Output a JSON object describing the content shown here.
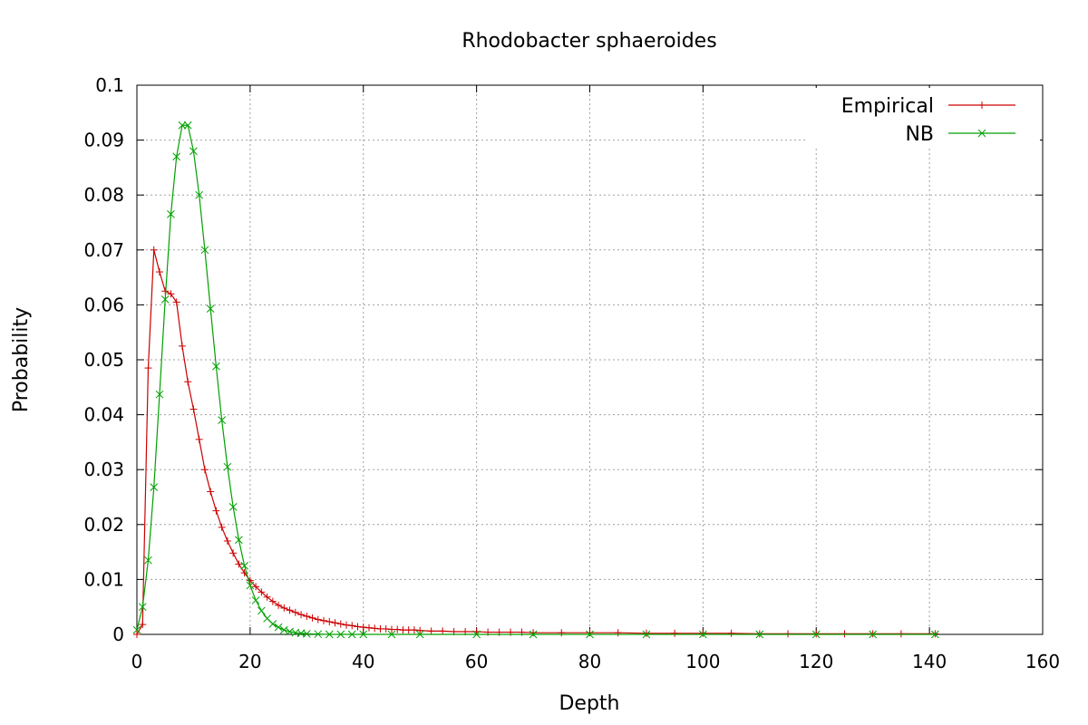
{
  "chart_data": {
    "type": "line",
    "title": "Rhodobacter sphaeroides",
    "xlabel": "Depth",
    "ylabel": "Probability",
    "xlim": [
      0,
      160
    ],
    "ylim": [
      0,
      0.1
    ],
    "x_ticks": [
      "0",
      "20",
      "40",
      "60",
      "80",
      "100",
      "120",
      "140",
      "160"
    ],
    "y_ticks": [
      "0",
      "0.01",
      "0.02",
      "0.03",
      "0.04",
      "0.05",
      "0.06",
      "0.07",
      "0.08",
      "0.09",
      "0.1"
    ],
    "grid": true,
    "legend_position": "top-right",
    "series": [
      {
        "name": "Empirical",
        "color": "#cc0000",
        "marker": "plus",
        "x": [
          0,
          1,
          2,
          3,
          4,
          5,
          6,
          7,
          8,
          9,
          10,
          11,
          12,
          13,
          14,
          15,
          16,
          17,
          18,
          19,
          20,
          21,
          22,
          23,
          24,
          25,
          26,
          27,
          28,
          29,
          30,
          31,
          32,
          33,
          34,
          35,
          36,
          37,
          38,
          39,
          40,
          41,
          42,
          43,
          44,
          45,
          46,
          47,
          48,
          49,
          50,
          52,
          54,
          56,
          58,
          60,
          62,
          64,
          66,
          68,
          70,
          75,
          80,
          85,
          90,
          95,
          100,
          105,
          110,
          115,
          120,
          125,
          130,
          135,
          141
        ],
        "y": [
          0,
          0.0018,
          0.0485,
          0.07,
          0.066,
          0.0625,
          0.062,
          0.0605,
          0.0525,
          0.046,
          0.041,
          0.0355,
          0.03,
          0.026,
          0.0225,
          0.0195,
          0.017,
          0.0148,
          0.0128,
          0.0112,
          0.0098,
          0.0087,
          0.0077,
          0.0068,
          0.006,
          0.0053,
          0.0048,
          0.0044,
          0.004,
          0.0036,
          0.0033,
          0.003,
          0.0027,
          0.0025,
          0.0023,
          0.0021,
          0.0019,
          0.0017,
          0.0016,
          0.0014,
          0.0013,
          0.0012,
          0.0011,
          0.001,
          0.001,
          0.0009,
          0.0009,
          0.0008,
          0.0008,
          0.0008,
          0.0007,
          0.0006,
          0.0006,
          0.0005,
          0.0005,
          0.0005,
          0.0004,
          0.0004,
          0.0004,
          0.0004,
          0.0003,
          0.0003,
          0.0003,
          0.0003,
          0.0002,
          0.0002,
          0.0002,
          0.0002,
          0.0001,
          0.0001,
          0.0001,
          0.0001,
          0.0001,
          0.0001,
          0.0001
        ]
      },
      {
        "name": "NB",
        "color": "#00a000",
        "marker": "cross",
        "x": [
          0,
          1,
          2,
          3,
          4,
          5,
          6,
          7,
          8,
          9,
          10,
          11,
          12,
          13,
          14,
          15,
          16,
          17,
          18,
          19,
          20,
          21,
          22,
          23,
          24,
          25,
          26,
          27,
          28,
          29,
          30,
          32,
          34,
          36,
          38,
          40,
          45,
          50,
          60,
          70,
          80,
          90,
          100,
          110,
          120,
          130,
          141
        ],
        "y": [
          0.0008,
          0.005,
          0.0135,
          0.0268,
          0.0437,
          0.061,
          0.0765,
          0.087,
          0.0927,
          0.0927,
          0.088,
          0.08,
          0.07,
          0.0593,
          0.0488,
          0.039,
          0.0305,
          0.0232,
          0.0172,
          0.0125,
          0.0089,
          0.0062,
          0.0043,
          0.0029,
          0.0019,
          0.0013,
          0.0008,
          0.0005,
          0.0003,
          0.0002,
          0.0001,
          5e-05,
          0,
          0,
          0,
          0,
          0,
          0,
          0,
          0,
          0,
          0,
          0,
          0,
          0,
          0,
          0
        ]
      }
    ]
  }
}
